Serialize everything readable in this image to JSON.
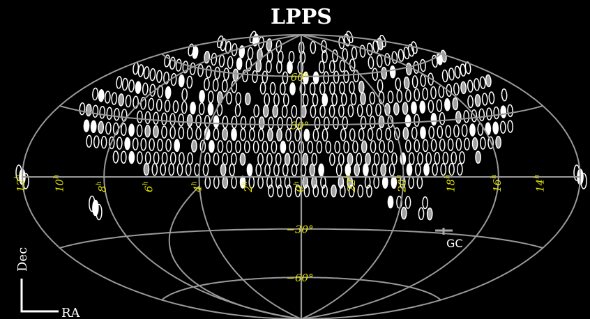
{
  "chart_data": {
    "type": "scatter",
    "projection": "hammer-aitoff",
    "title": "LPPS",
    "xlabel": "RA",
    "ylabel": "Dec",
    "ra_tick_labels": [
      "12h",
      "10h",
      "8h",
      "6h",
      "4h",
      "2h",
      "0h",
      "22h",
      "20h",
      "18h",
      "16h",
      "14h"
    ],
    "dec_tick_labels": [
      "60°",
      "30°",
      "−30°",
      "−60°"
    ],
    "grid": true,
    "annotations": [
      {
        "text": "GC"
      }
    ],
    "footprint_rows": [
      {
        "dec": 80,
        "ra_ranges": [
          [
            -180,
            180
          ]
        ]
      },
      {
        "dec": 73,
        "ra_ranges": [
          [
            -180,
            180
          ]
        ]
      },
      {
        "dec": 66,
        "ra_ranges": [
          [
            -178,
            178
          ]
        ]
      },
      {
        "dec": 59,
        "ra_ranges": [
          [
            -176,
            176
          ]
        ]
      },
      {
        "dec": 52,
        "ra_ranges": [
          [
            -170,
            172
          ]
        ]
      },
      {
        "dec": 45,
        "ra_ranges": [
          [
            -165,
            168
          ]
        ]
      },
      {
        "dec": 38,
        "ra_ranges": [
          [
            -160,
            165
          ]
        ]
      },
      {
        "dec": 31,
        "ra_ranges": [
          [
            -150,
            160
          ]
        ]
      },
      {
        "dec": 24,
        "ra_ranges": [
          [
            -140,
            150
          ]
        ]
      },
      {
        "dec": 17,
        "ra_ranges": [
          [
            -125,
            140
          ]
        ]
      },
      {
        "dec": 10,
        "ra_ranges": [
          [
            -108,
            115
          ]
        ]
      },
      {
        "dec": 4,
        "ra_ranges": [
          [
            -95,
            95
          ]
        ]
      },
      {
        "dec": -3,
        "ra_ranges": [
          [
            -70,
            60
          ]
        ]
      },
      {
        "dec": -8,
        "ra_ranges": [
          [
            -40,
            20
          ]
        ]
      },
      {
        "dec": -14,
        "ra_ranges": [
          [
            -75,
            -50
          ]
        ]
      },
      {
        "dec": -20,
        "ra_ranges": [
          [
            -80,
            -60
          ]
        ]
      }
    ],
    "isolated_patches": [
      {
        "ra": -180,
        "dec": 0
      },
      {
        "ra": 180,
        "dec": 0
      },
      {
        "ra": 130,
        "dec": -15
      }
    ]
  }
}
